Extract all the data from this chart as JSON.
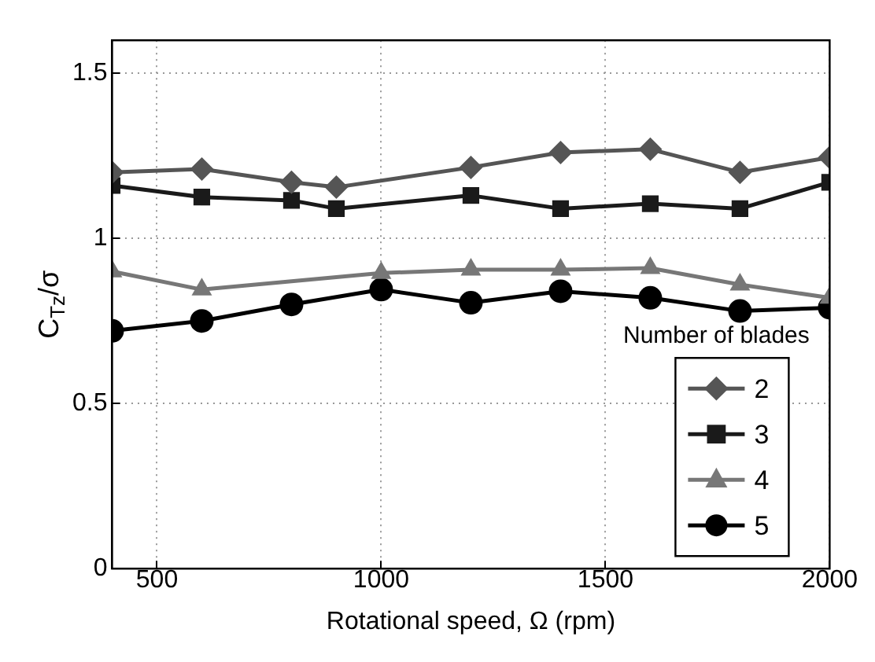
{
  "chart_data": {
    "type": "line",
    "xlabel": "Rotational speed, Ω (rpm)",
    "ylabel": "C$_{Tz}$/σ",
    "legend_title": "Number of blades",
    "legend": "bottom right",
    "grid": true,
    "xlim": [
      400,
      2000
    ],
    "xticks": [
      500,
      1000,
      1500,
      2000
    ],
    "ylim": [
      0,
      1.6
    ],
    "yticks": [
      0,
      0.5,
      1,
      1.5
    ],
    "series": [
      {
        "name": "2",
        "color": "#555555",
        "marker": "diamond",
        "x": [
          400,
          600,
          800,
          900,
          1200,
          1400,
          1600,
          1800,
          2000
        ],
        "values": [
          1.2,
          1.21,
          1.17,
          1.155,
          1.215,
          1.26,
          1.27,
          1.2,
          1.245
        ]
      },
      {
        "name": "3",
        "color": "#1a1a1a",
        "marker": "square",
        "x": [
          400,
          600,
          800,
          900,
          1200,
          1400,
          1600,
          1800,
          2000
        ],
        "values": [
          1.16,
          1.125,
          1.115,
          1.09,
          1.13,
          1.09,
          1.105,
          1.09,
          1.17
        ]
      },
      {
        "name": "4",
        "color": "#777777",
        "marker": "triangle",
        "x": [
          400,
          600,
          1000,
          1200,
          1400,
          1600,
          1800,
          2000
        ],
        "values": [
          0.9,
          0.845,
          0.895,
          0.905,
          0.905,
          0.91,
          0.86,
          0.82
        ]
      },
      {
        "name": "5",
        "color": "#000000",
        "marker": "circle",
        "x": [
          400,
          600,
          800,
          1000,
          1200,
          1400,
          1600,
          1800,
          2000
        ],
        "values": [
          0.72,
          0.75,
          0.8,
          0.845,
          0.805,
          0.84,
          0.82,
          0.78,
          0.79
        ]
      }
    ]
  }
}
